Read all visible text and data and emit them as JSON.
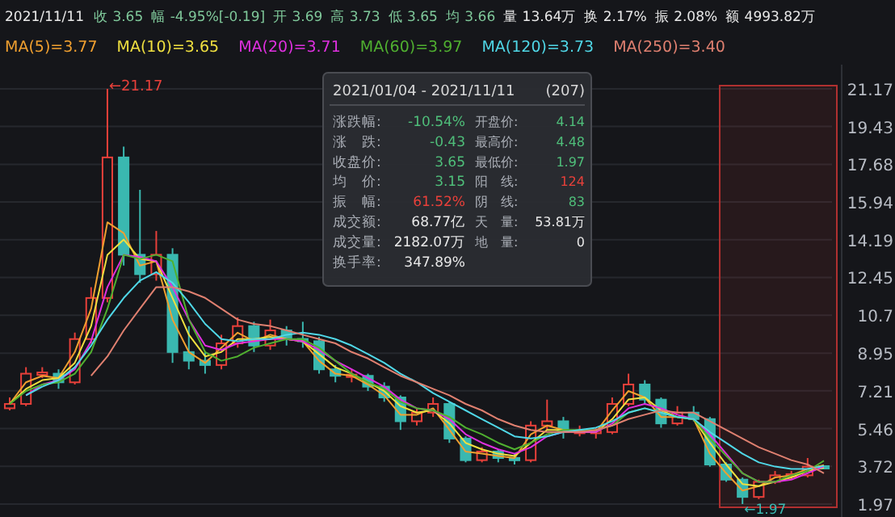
{
  "chart_data": {
    "type": "candlestick",
    "title": "2021/11/11",
    "categories": [
      null,
      null,
      null,
      null,
      null,
      null,
      null,
      null,
      null,
      null,
      null,
      null,
      null,
      null,
      null,
      null,
      null,
      null,
      null,
      null,
      null,
      null,
      null,
      null,
      null,
      null,
      null,
      null,
      null,
      null,
      null,
      null,
      null,
      null,
      null,
      null,
      null,
      null,
      null,
      null,
      null,
      null,
      null,
      null,
      null,
      null,
      null,
      null,
      null,
      null,
      null
    ],
    "ohlc": [
      [
        6.4,
        6.9,
        6.3,
        6.6
      ],
      [
        6.6,
        8.3,
        6.5,
        8.0
      ],
      [
        8.0,
        8.3,
        7.8,
        8.0
      ],
      [
        8.0,
        8.2,
        7.3,
        7.6
      ],
      [
        7.6,
        9.9,
        7.5,
        9.6
      ],
      [
        9.6,
        12.0,
        9.4,
        11.5
      ],
      [
        11.5,
        21.17,
        11.3,
        18.0
      ],
      [
        18.0,
        18.5,
        13.0,
        13.5
      ],
      [
        13.5,
        16.5,
        12.2,
        12.6
      ],
      [
        12.6,
        14.6,
        12.3,
        13.5
      ],
      [
        13.5,
        13.8,
        8.5,
        9.0
      ],
      [
        9.0,
        10.2,
        8.2,
        8.6
      ],
      [
        8.6,
        9.0,
        8.0,
        8.4
      ],
      [
        8.4,
        9.8,
        8.2,
        9.4
      ],
      [
        9.4,
        10.6,
        9.2,
        10.2
      ],
      [
        10.2,
        10.4,
        9.0,
        9.3
      ],
      [
        9.3,
        10.5,
        9.1,
        10.0
      ],
      [
        10.0,
        10.2,
        9.3,
        9.6
      ],
      [
        9.6,
        10.4,
        9.2,
        9.5
      ],
      [
        9.5,
        9.7,
        8.0,
        8.2
      ],
      [
        8.2,
        8.4,
        7.6,
        7.9
      ],
      [
        7.9,
        8.2,
        7.6,
        7.9
      ],
      [
        7.9,
        8.0,
        7.2,
        7.4
      ],
      [
        7.4,
        7.6,
        6.7,
        6.9
      ],
      [
        6.9,
        7.0,
        5.4,
        5.8
      ],
      [
        5.8,
        6.4,
        5.6,
        6.2
      ],
      [
        6.2,
        6.9,
        6.0,
        6.6
      ],
      [
        6.6,
        6.7,
        4.8,
        5.0
      ],
      [
        5.0,
        5.1,
        3.9,
        4.0
      ],
      [
        4.0,
        4.6,
        3.9,
        4.4
      ],
      [
        4.4,
        4.5,
        3.9,
        4.1
      ],
      [
        4.1,
        4.3,
        3.8,
        4.0
      ],
      [
        4.0,
        5.8,
        3.9,
        5.6
      ],
      [
        5.6,
        6.8,
        5.4,
        5.8
      ],
      [
        5.8,
        6.0,
        5.0,
        5.3
      ],
      [
        5.3,
        5.6,
        5.1,
        5.3
      ],
      [
        5.3,
        5.5,
        5.0,
        5.3
      ],
      [
        5.3,
        6.9,
        5.2,
        6.6
      ],
      [
        6.6,
        8.0,
        6.5,
        7.5
      ],
      [
        7.5,
        7.7,
        6.6,
        6.8
      ],
      [
        6.8,
        6.9,
        5.5,
        5.7
      ],
      [
        5.7,
        6.5,
        5.6,
        6.2
      ],
      [
        6.2,
        6.5,
        5.8,
        5.9
      ],
      [
        5.9,
        6.0,
        3.7,
        3.8
      ],
      [
        3.8,
        3.9,
        3.0,
        3.1
      ],
      [
        3.1,
        3.2,
        1.97,
        2.3
      ],
      [
        2.3,
        3.1,
        2.2,
        3.0
      ],
      [
        3.0,
        3.5,
        2.9,
        3.3
      ],
      [
        3.3,
        3.5,
        3.1,
        3.3
      ],
      [
        3.3,
        4.1,
        3.2,
        3.7
      ],
      [
        3.69,
        3.73,
        3.65,
        3.65
      ]
    ],
    "series": [
      {
        "name": "MA(5)=3.77",
        "color": "#f0a030",
        "type": "line",
        "values": [
          6.6,
          7.6,
          7.9,
          7.8,
          9.0,
          11.0,
          15.0,
          14.5,
          13.0,
          13.2,
          10.5,
          9.0,
          8.5,
          9.2,
          9.9,
          9.5,
          9.8,
          9.6,
          9.5,
          8.6,
          8.0,
          7.9,
          7.5,
          7.0,
          6.1,
          6.1,
          6.4,
          5.4,
          4.4,
          4.3,
          4.2,
          4.1,
          5.2,
          5.6,
          5.4,
          5.3,
          5.3,
          6.3,
          7.2,
          6.9,
          6.0,
          6.0,
          5.9,
          4.3,
          3.4,
          2.6,
          2.8,
          3.2,
          3.3,
          3.6,
          3.77
        ]
      },
      {
        "name": "MA(10)=3.65",
        "color": "#f0e040",
        "type": "line",
        "values": [
          6.6,
          7.3,
          7.7,
          7.8,
          8.5,
          10.2,
          13.5,
          14.2,
          13.3,
          13.2,
          11.5,
          9.8,
          8.8,
          9.0,
          9.6,
          9.6,
          9.7,
          9.6,
          9.5,
          8.9,
          8.3,
          8.0,
          7.6,
          7.2,
          6.5,
          6.2,
          6.3,
          5.7,
          4.8,
          4.5,
          4.3,
          4.2,
          4.8,
          5.4,
          5.4,
          5.3,
          5.3,
          5.9,
          6.8,
          6.9,
          6.3,
          6.0,
          5.9,
          4.8,
          3.8,
          2.9,
          2.8,
          3.0,
          3.2,
          3.5,
          3.65
        ]
      },
      {
        "name": "MA(20)=3.71",
        "color": "#e030e0",
        "type": "line",
        "values": [
          null,
          7.0,
          7.5,
          7.7,
          8.2,
          9.5,
          12.0,
          13.5,
          13.4,
          13.2,
          12.0,
          10.5,
          9.3,
          9.1,
          9.4,
          9.5,
          9.6,
          9.6,
          9.5,
          9.1,
          8.6,
          8.2,
          7.8,
          7.4,
          6.8,
          6.4,
          6.3,
          5.9,
          5.2,
          4.8,
          4.5,
          4.3,
          4.6,
          5.1,
          5.3,
          5.3,
          5.3,
          5.7,
          6.4,
          6.6,
          6.4,
          6.1,
          5.9,
          5.2,
          4.3,
          3.4,
          3.0,
          3.0,
          3.1,
          3.4,
          3.71
        ]
      },
      {
        "name": "MA(60)=3.97",
        "color": "#50b030",
        "type": "line",
        "values": [
          6.6,
          7.2,
          7.5,
          7.6,
          8.0,
          9.0,
          11.0,
          13.5,
          13.3,
          13.5,
          13.2,
          10.5,
          9.0,
          8.6,
          8.8,
          9.2,
          9.4,
          9.6,
          9.6,
          9.2,
          8.6,
          8.0,
          7.6,
          7.3,
          6.7,
          6.4,
          6.3,
          6.0,
          5.5,
          5.2,
          4.8,
          4.5,
          4.8,
          5.2,
          5.4,
          5.4,
          5.4,
          5.6,
          6.2,
          6.4,
          6.2,
          6.0,
          5.9,
          5.0,
          4.2,
          3.4,
          3.0,
          3.0,
          3.3,
          3.5,
          3.97
        ]
      },
      {
        "name": "MA(120)=3.73",
        "color": "#50d8e8",
        "type": "line",
        "values": [
          null,
          7.0,
          7.4,
          7.7,
          8.3,
          9.3,
          10.5,
          11.5,
          12.3,
          12.7,
          12.2,
          11.3,
          10.3,
          9.6,
          9.5,
          9.6,
          9.6,
          9.8,
          9.9,
          9.8,
          9.6,
          9.3,
          8.9,
          8.5,
          8.0,
          7.6,
          7.1,
          6.7,
          6.3,
          5.9,
          5.5,
          5.1,
          5.0,
          5.1,
          5.3,
          5.4,
          5.5,
          5.8,
          6.2,
          6.4,
          6.2,
          6.0,
          5.9,
          5.3,
          4.8,
          4.3,
          3.9,
          3.7,
          3.6,
          3.6,
          3.73
        ]
      },
      {
        "name": "MA(250)=3.40",
        "color": "#e08070",
        "type": "line",
        "values": [
          null,
          null,
          null,
          null,
          null,
          7.9,
          8.8,
          10.0,
          11.0,
          12.0,
          12.0,
          11.8,
          11.5,
          11.0,
          10.5,
          10.3,
          10.2,
          10.0,
          9.8,
          9.6,
          9.4,
          9.0,
          8.7,
          8.3,
          7.9,
          7.6,
          7.3,
          7.0,
          6.6,
          6.3,
          5.9,
          5.6,
          5.4,
          5.3,
          5.3,
          5.3,
          5.4,
          5.6,
          5.9,
          6.1,
          6.3,
          6.2,
          6.2,
          5.8,
          5.4,
          5.0,
          4.6,
          4.3,
          4.0,
          3.8,
          3.4
        ]
      }
    ],
    "ylim": [
      1.97,
      21.17
    ],
    "yticks": [
      1.97,
      3.72,
      5.46,
      7.21,
      8.95,
      10.7,
      12.45,
      14.19,
      15.94,
      17.68,
      19.43,
      21.17
    ],
    "grid": "y",
    "legend": "top left",
    "annotations": [
      "←21.17",
      "←1.97",
      "收 3.65",
      "幅 -4.95%[-0.19]",
      "开 3.69",
      "高 3.73",
      "低 3.65",
      "均 3.66",
      "量 13.64万",
      "换 2.17%",
      "振 2.08%",
      "额 4993.82万",
      "2021/01/04 - 2021/11/11",
      "(207)",
      "涨跌幅:",
      "-10.54%",
      "涨　跌:",
      "-0.43",
      "收盘价:",
      "3.65",
      "均　价:",
      "3.15",
      "振　幅:",
      "61.52%",
      "成交额:",
      "68.77亿",
      "成交量:",
      "2182.07万",
      "换手率:",
      "347.89%",
      "开盘价:",
      "4.14",
      "最高价:",
      "4.48",
      "最低价:",
      "1.97",
      "阳　线:",
      "124",
      "阴　线:",
      "83",
      "天　量:",
      "53.81万",
      "地　量:",
      "0"
    ]
  }
}
